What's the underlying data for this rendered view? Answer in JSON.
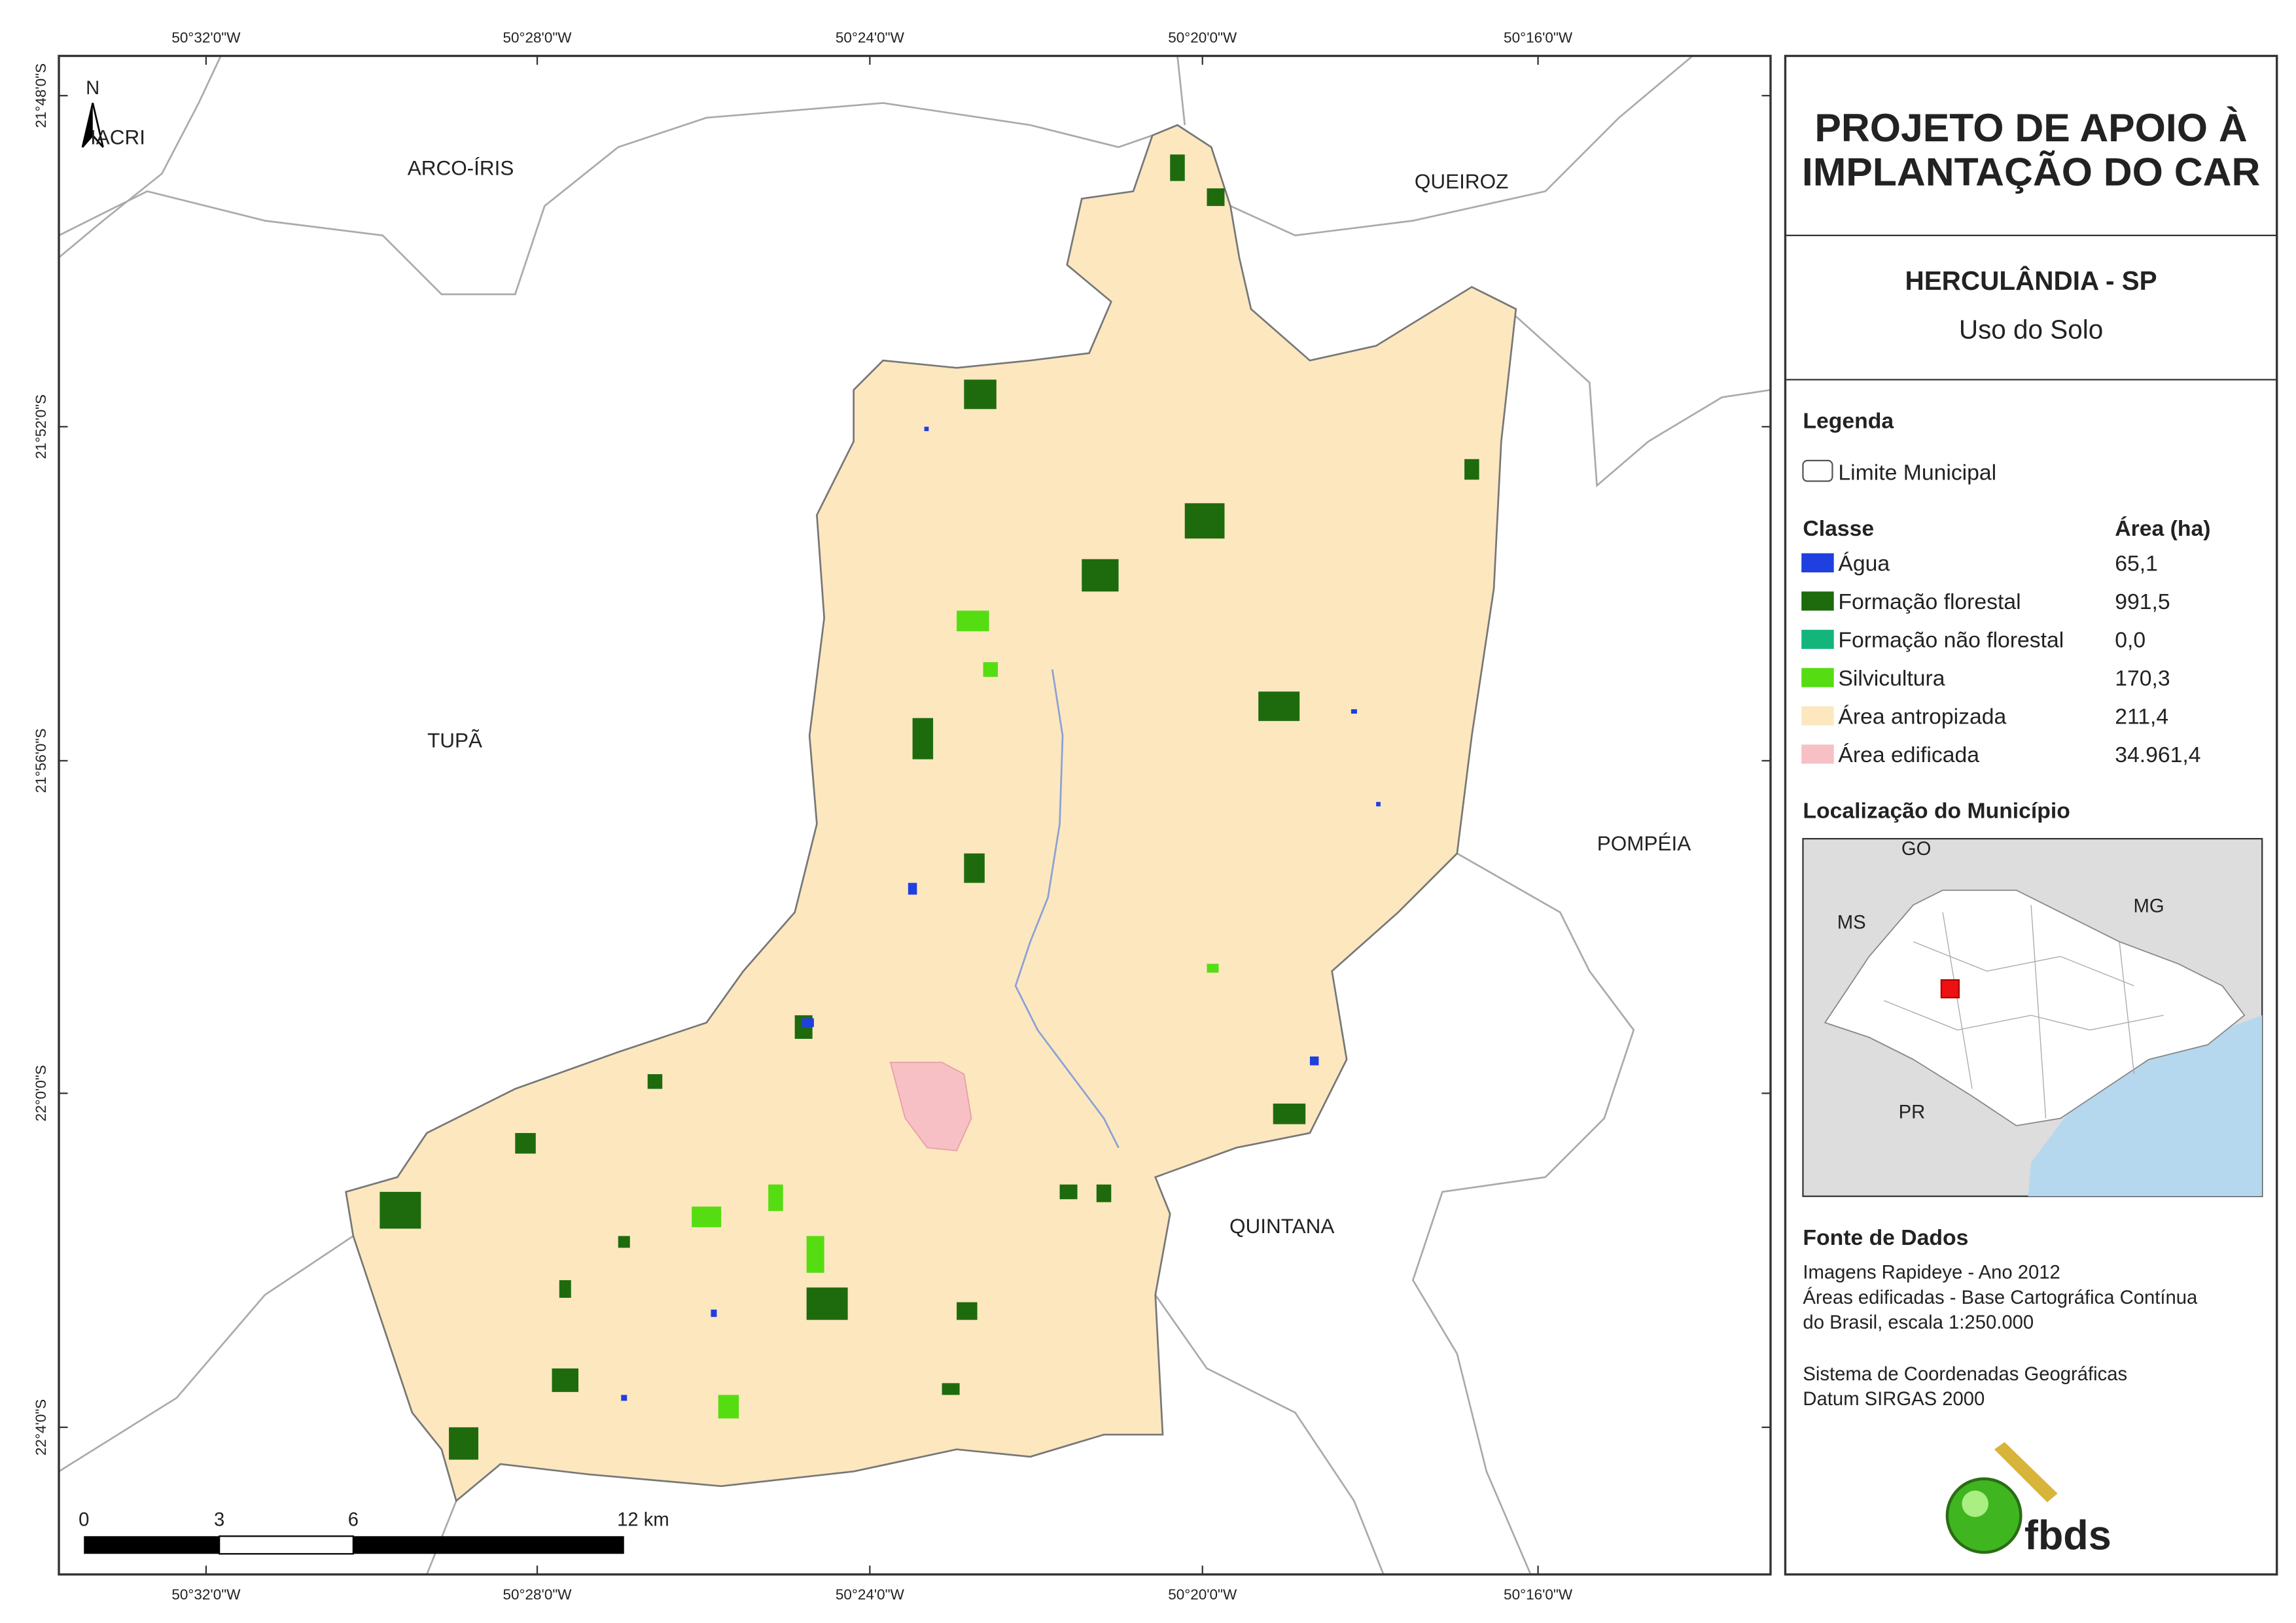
{
  "header": {
    "title_lines": [
      "PROJETO DE APOIO À",
      "IMPLANTAÇÃO DO CAR"
    ],
    "municipality": "HERCULÂNDIA - SP",
    "theme": "Uso do Solo"
  },
  "legend": {
    "title": "Legenda",
    "boundary": "Limite Municipal",
    "class_header": "Classe",
    "area_header": "Área (ha)",
    "classes": [
      {
        "name": "Água",
        "area": "65,1",
        "color": "#1f3fe0"
      },
      {
        "name": "Formação florestal",
        "area": "991,5",
        "color": "#1e6b0e"
      },
      {
        "name": "Formação não florestal",
        "area": "0,0",
        "color": "#13b57a"
      },
      {
        "name": "Silvicultura",
        "area": "170,3",
        "color": "#55dd12"
      },
      {
        "name": "Área antropizada",
        "area": "211,4",
        "color": "#fce7bf"
      },
      {
        "name": "Área edificada",
        "area": "34.961,4",
        "color": "#f7c0c4"
      }
    ]
  },
  "location": {
    "title": "Localização do Município",
    "labels": [
      "GO",
      "MS",
      "MG",
      "PR"
    ]
  },
  "source": {
    "title": "Fonte de Dados",
    "lines": [
      "Imagens Rapideye - Ano 2012",
      "Áreas edificadas - Base Cartográfica Contínua",
      "do Brasil, escala 1:250.000"
    ],
    "crs_lines": [
      "Sistema de Coordenadas Geográficas",
      "Datum SIRGAS 2000"
    ]
  },
  "map": {
    "lon_ticks": [
      "50°32'0\"W",
      "50°28'0\"W",
      "50°24'0\"W",
      "50°20'0\"W",
      "50°16'0\"W"
    ],
    "lat_ticks": [
      "21°48'0\"S",
      "21°52'0\"S",
      "21°56'0\"S",
      "22°0'0\"S",
      "22°4'0\"S"
    ],
    "places": [
      "IACRI",
      "ARCO-ÍRIS",
      "QUEIROZ",
      "TUPÃ",
      "POMPÉIA",
      "QUINTANA"
    ],
    "north": "N",
    "scale_labels": [
      "0",
      "3",
      "6",
      "12 km"
    ]
  },
  "logo": "fbds"
}
